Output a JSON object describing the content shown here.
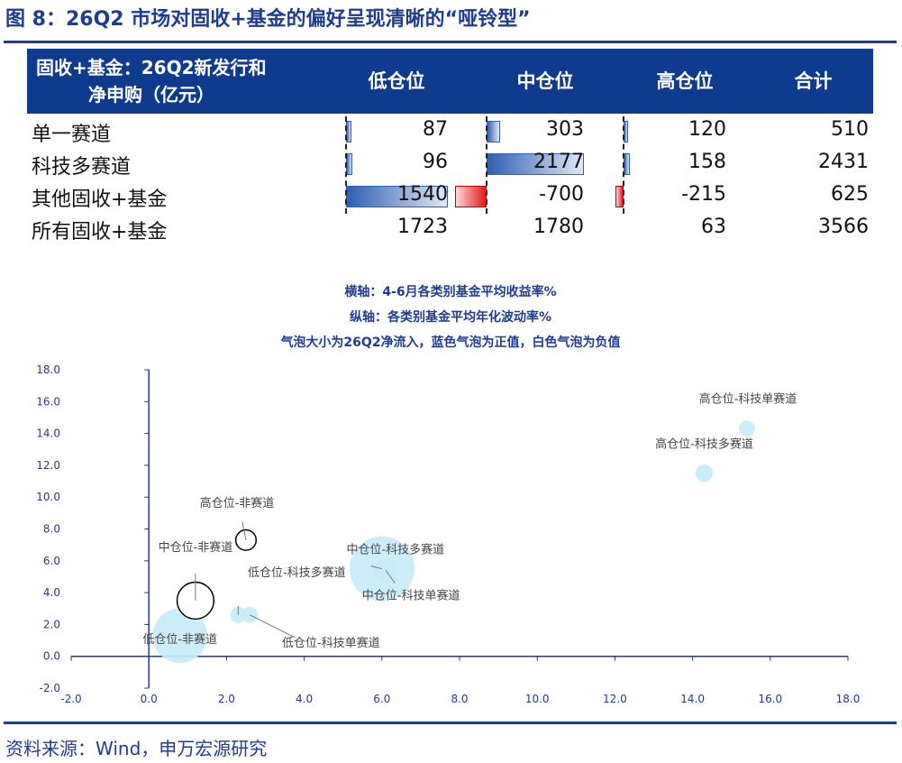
{
  "figure_title": "图 8：26Q2 市场对固收+基金的偏好呈现清晰的“哑铃型”",
  "source": "资料来源：Wind，申万宏源研究",
  "table": {
    "header_line1": "固收+基金：26Q2新发行和",
    "header_line2": "净申购（亿元）",
    "columns": [
      "低仓位",
      "中仓位",
      "高仓位",
      "合计"
    ],
    "rows": [
      {
        "label": "单一赛道",
        "values": [
          "87",
          "303",
          "120",
          "510"
        ]
      },
      {
        "label": "科技多赛道",
        "values": [
          "96",
          "2177",
          "158",
          "2431"
        ]
      },
      {
        "label": "其他固收+基金",
        "values": [
          "1540",
          "-700",
          "-215",
          "625"
        ]
      },
      {
        "label": "所有固收+基金",
        "values": [
          "1723",
          "1780",
          "63",
          "3566"
        ]
      }
    ],
    "bar_colors": {
      "positive": "#2f5fb3",
      "negative": "#e81818"
    }
  },
  "chart_notes": {
    "line1": "横轴：4-6月各类别基金平均收益率%",
    "line2": "纵轴：各类别基金平均年化波动率%",
    "line3": "气泡大小为26Q2净流入，蓝色气泡为正值，白色气泡为负值"
  },
  "chart_data": {
    "type": "scatter",
    "bubble": true,
    "xlim": [
      -2.0,
      18.0
    ],
    "ylim": [
      -2.0,
      18.0
    ],
    "x_ticks": [
      "-2.0",
      "0.0",
      "2.0",
      "4.0",
      "6.0",
      "8.0",
      "10.0",
      "12.0",
      "14.0",
      "16.0",
      "18.0"
    ],
    "y_ticks": [
      "-2.0",
      "0.0",
      "2.0",
      "4.0",
      "6.0",
      "8.0",
      "10.0",
      "12.0",
      "14.0",
      "16.0",
      "18.0"
    ],
    "colors": {
      "positive": "#c6ecfb",
      "negative": "#ffffff",
      "negative_border": "#000000"
    },
    "points": [
      {
        "label": "低仓位-非赛道",
        "x": 0.8,
        "y": 1.3,
        "size": 1540,
        "sign": "positive"
      },
      {
        "label": "低仓位-科技多赛道",
        "x": 2.3,
        "y": 2.6,
        "size": 96,
        "sign": "positive"
      },
      {
        "label": "低仓位-科技单赛道",
        "x": 2.6,
        "y": 2.6,
        "size": 87,
        "sign": "positive"
      },
      {
        "label": "中仓位-非赛道",
        "x": 1.2,
        "y": 3.5,
        "size": 700,
        "sign": "negative"
      },
      {
        "label": "高仓位-非赛道",
        "x": 2.5,
        "y": 7.3,
        "size": 215,
        "sign": "negative"
      },
      {
        "label": "中仓位-科技多赛道",
        "x": 6.0,
        "y": 5.5,
        "size": 2177,
        "sign": "positive"
      },
      {
        "label": "中仓位-科技单赛道",
        "x": 6.1,
        "y": 5.4,
        "size": 303,
        "sign": "positive"
      },
      {
        "label": "高仓位-科技多赛道",
        "x": 14.3,
        "y": 11.5,
        "size": 158,
        "sign": "positive"
      },
      {
        "label": "高仓位-科技单赛道",
        "x": 15.4,
        "y": 14.3,
        "size": 120,
        "sign": "positive"
      }
    ]
  }
}
